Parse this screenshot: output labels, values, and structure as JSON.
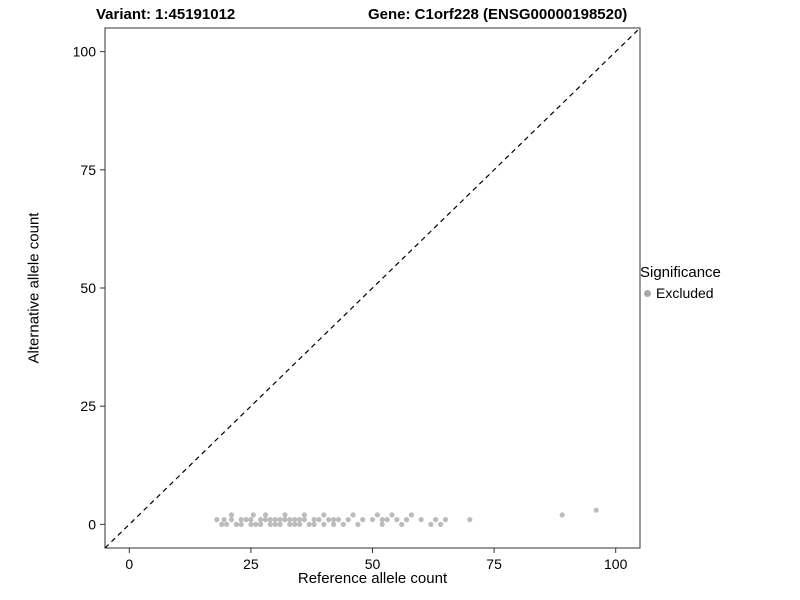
{
  "header": {
    "variant_title": "Variant: 1:45191012",
    "gene_title": "Gene: C1orf228 (ENSG00000198520)"
  },
  "legend": {
    "title": "Significance",
    "items": [
      {
        "label": "Excluded",
        "color": "#a8a8a8"
      }
    ]
  },
  "colors": {
    "point": "#b5b5b5",
    "axis_text": "#000000",
    "panel_border": "#333333",
    "identity_line": "#000000"
  },
  "chart_data": {
    "type": "scatter",
    "title": "Variant: 1:45191012 — Gene: C1orf228 (ENSG00000198520)",
    "xlabel": "Reference allele count",
    "ylabel": "Alternative allele count",
    "xlim": [
      -5,
      105
    ],
    "ylim": [
      -5,
      105
    ],
    "xticks": [
      0,
      25,
      50,
      75,
      100
    ],
    "yticks": [
      0,
      25,
      50,
      75,
      100
    ],
    "grid": false,
    "legend_position": "right",
    "identity_line": {
      "style": "dashed",
      "from": [
        -5,
        -5
      ],
      "to": [
        105,
        105
      ]
    },
    "series": [
      {
        "name": "Excluded",
        "color": "#b5b5b5",
        "points": [
          [
            18,
            1
          ],
          [
            19,
            0
          ],
          [
            19.5,
            1
          ],
          [
            20,
            0
          ],
          [
            21,
            1
          ],
          [
            21,
            2
          ],
          [
            22,
            0
          ],
          [
            23,
            1
          ],
          [
            23,
            0
          ],
          [
            24,
            1
          ],
          [
            25,
            0
          ],
          [
            25,
            1
          ],
          [
            25.5,
            2
          ],
          [
            26,
            0
          ],
          [
            27,
            1
          ],
          [
            27,
            0
          ],
          [
            28,
            1
          ],
          [
            28,
            2
          ],
          [
            29,
            0
          ],
          [
            29,
            1
          ],
          [
            30,
            0
          ],
          [
            30,
            1
          ],
          [
            31,
            1
          ],
          [
            31,
            0
          ],
          [
            32,
            1
          ],
          [
            32,
            2
          ],
          [
            33,
            0
          ],
          [
            33,
            1
          ],
          [
            34,
            0
          ],
          [
            34,
            1
          ],
          [
            35,
            1
          ],
          [
            35,
            0
          ],
          [
            36,
            1
          ],
          [
            36,
            2
          ],
          [
            37,
            0
          ],
          [
            38,
            1
          ],
          [
            38,
            0
          ],
          [
            39,
            1
          ],
          [
            40,
            0
          ],
          [
            40,
            2
          ],
          [
            41,
            1
          ],
          [
            42,
            0
          ],
          [
            42,
            1
          ],
          [
            43,
            1
          ],
          [
            44,
            0
          ],
          [
            45,
            1
          ],
          [
            46,
            2
          ],
          [
            47,
            0
          ],
          [
            48,
            1
          ],
          [
            50,
            1
          ],
          [
            51,
            2
          ],
          [
            52,
            0
          ],
          [
            52,
            1
          ],
          [
            53,
            1
          ],
          [
            54,
            2
          ],
          [
            55,
            1
          ],
          [
            56,
            0
          ],
          [
            57,
            1
          ],
          [
            58,
            2
          ],
          [
            60,
            1
          ],
          [
            62,
            0
          ],
          [
            63,
            1
          ],
          [
            64,
            0
          ],
          [
            65,
            1
          ],
          [
            70,
            1
          ],
          [
            89,
            2
          ],
          [
            96,
            3
          ]
        ]
      }
    ]
  }
}
